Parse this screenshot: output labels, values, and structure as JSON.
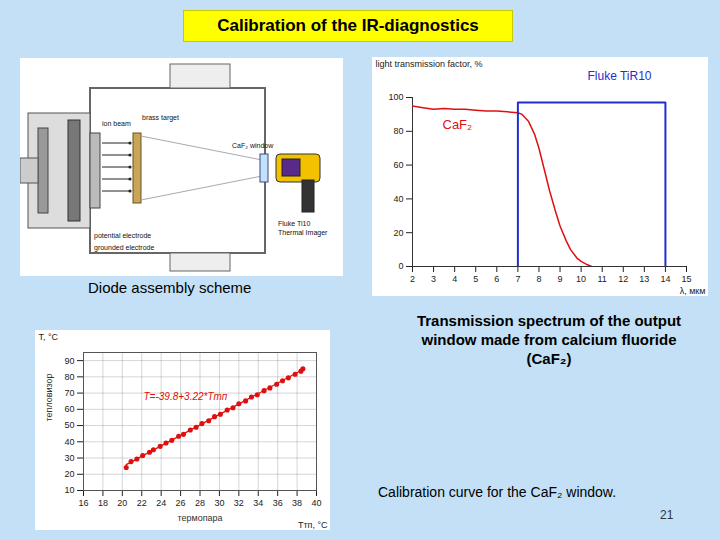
{
  "slide": {
    "title": "Calibration of the IR-diagnostics",
    "page": 21
  },
  "diagram": {
    "caption": "Diode assembly scheme",
    "labels": [
      "ion beam",
      "brass target",
      "CaF₂ window",
      "potential electrode",
      "grounded electrode",
      "Fluke Ti10",
      "Thermal Imager"
    ]
  },
  "chart_data": [
    {
      "type": "line",
      "title": "Transmission spectrum of the output window made from calcium fluoride (CaF₂)",
      "ylabel": "light transmission factor, %",
      "xlabel": "λ, мкм",
      "xlim": [
        2,
        15
      ],
      "xticks": [
        2,
        3,
        4,
        5,
        6,
        7,
        8,
        9,
        10,
        11,
        12,
        13,
        14,
        15
      ],
      "ylim": [
        0,
        100
      ],
      "yticks": [
        0,
        20,
        40,
        60,
        80,
        100
      ],
      "grid": false,
      "series": [
        {
          "name": "CaF₂",
          "color": "#e01010",
          "x": [
            2,
            2.5,
            3,
            3.5,
            4,
            4.5,
            5,
            5.5,
            6,
            6.5,
            7,
            7.2,
            7.5,
            7.8,
            8,
            8.3,
            8.5,
            8.8,
            9,
            9.3,
            9.5,
            9.8,
            10,
            10.3,
            10.5
          ],
          "values": [
            95,
            94,
            93,
            93.5,
            93,
            93,
            92.5,
            92,
            92,
            91.5,
            91,
            90,
            86,
            78,
            70,
            55,
            45,
            32,
            24,
            15,
            10,
            5,
            3,
            1,
            0
          ]
        },
        {
          "name": "Fluke TiR10",
          "color": "#1f2fd0",
          "x": [
            7,
            7,
            14,
            14
          ],
          "values": [
            0,
            97,
            97,
            0
          ]
        }
      ]
    },
    {
      "type": "scatter",
      "title": "Calibration curve for the CaF₂ window.",
      "ylabel": "T, °C",
      "xlabel": "Tтп, °C",
      "annotations": [
        "тепловизор",
        "термопара",
        "T=-39.8+3.22*Tтп"
      ],
      "xlim": [
        16,
        40
      ],
      "xticks": [
        16,
        18,
        20,
        22,
        24,
        26,
        28,
        30,
        32,
        34,
        36,
        38,
        40
      ],
      "ylim": [
        10,
        95
      ],
      "yticks": [
        10,
        20,
        30,
        40,
        50,
        60,
        70,
        80,
        90
      ],
      "grid": true,
      "series": [
        {
          "type": "scatter",
          "color": "#e01010",
          "marker": "circle",
          "x": [
            20.4,
            20.9,
            21.5,
            22.1,
            22.8,
            23.2,
            23.9,
            24.5,
            25.1,
            25.8,
            26.3,
            27.0,
            27.6,
            28.2,
            28.9,
            29.5,
            30.1,
            30.8,
            31.4,
            32.0,
            32.7,
            33.3,
            33.9,
            34.6,
            35.2,
            35.9,
            36.5,
            37.1,
            37.8,
            38.4,
            38.6
          ],
          "values": [
            24.2,
            27.8,
            29.4,
            31.6,
            33.6,
            35.1,
            37.2,
            39.3,
            40.9,
            43.4,
            44.6,
            47.3,
            49.0,
            51.2,
            53.0,
            55.5,
            57.0,
            59.6,
            61.0,
            63.4,
            65.2,
            67.6,
            69.0,
            71.5,
            73.2,
            75.4,
            77.6,
            79.4,
            81.6,
            83.5,
            85.0
          ]
        },
        {
          "type": "line",
          "color": "#e01010",
          "line_style": "solid",
          "x": [
            20.4,
            38.6
          ],
          "values": [
            25.9,
            84.5
          ]
        }
      ]
    }
  ]
}
